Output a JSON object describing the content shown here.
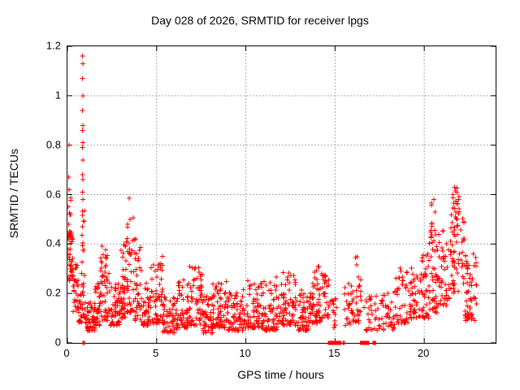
{
  "chart_data": {
    "type": "scatter",
    "title": "Day 028 of 2026, SRMTID for receiver lpgs",
    "xlabel": "GPS time / hours",
    "ylabel": "SRMTID / TECUs",
    "xlim": [
      0,
      24
    ],
    "ylim": [
      0,
      1.2
    ],
    "xticks": [
      0,
      5,
      10,
      15,
      20
    ],
    "xtick_labels": [
      "0",
      "5",
      "10",
      "15",
      "20"
    ],
    "yticks": [
      0,
      0.2,
      0.4,
      0.6,
      0.8,
      1,
      1.2
    ],
    "ytick_labels": [
      "0",
      "0.2",
      "0.4",
      "0.6",
      "0.8",
      "1",
      "1.2"
    ],
    "grid": true,
    "legend": "none",
    "marker": {
      "shape": "plus",
      "color": "#ff0000",
      "size": 6
    },
    "grid_color": "#a8a8a8",
    "axis_color": "#000000",
    "notable_points": [
      [
        0.85,
        1.16
      ],
      [
        0.86,
        1.13
      ],
      [
        0.85,
        1.07
      ],
      [
        0.86,
        1.0
      ],
      [
        0.85,
        0.94
      ],
      [
        0.87,
        0.88
      ],
      [
        0.85,
        0.86
      ],
      [
        0.86,
        0.81
      ],
      [
        0.85,
        0.79
      ],
      [
        0.87,
        0.74
      ],
      [
        0.85,
        0.68
      ],
      [
        0.86,
        0.66
      ],
      [
        0.85,
        0.61
      ],
      [
        0.87,
        0.58
      ],
      [
        0.1,
        0.8
      ],
      [
        0.06,
        0.67
      ],
      [
        0.1,
        0.62
      ],
      [
        0.05,
        0.55
      ],
      [
        0.13,
        0.52
      ],
      [
        3.45,
        0.585
      ],
      [
        3.5,
        0.5
      ],
      [
        3.38,
        0.48
      ],
      [
        21.7,
        0.63
      ],
      [
        21.75,
        0.615
      ],
      [
        21.6,
        0.6
      ],
      [
        20.4,
        0.565
      ]
    ],
    "clusters": [
      [
        0.02,
        0.32,
        0.25,
        0.46,
        40,
        1.0
      ],
      [
        0.04,
        0.2,
        0.44,
        0.6,
        8,
        1.3
      ],
      [
        0.3,
        0.62,
        0.12,
        0.32,
        26,
        1.5
      ],
      [
        0.6,
        0.82,
        0.08,
        0.2,
        20,
        1.5
      ],
      [
        0.8,
        0.96,
        0.1,
        0.55,
        26,
        1.2
      ],
      [
        0.96,
        1.55,
        0.05,
        0.17,
        55,
        1.5
      ],
      [
        1.55,
        1.85,
        0.07,
        0.24,
        30,
        1.6
      ],
      [
        1.85,
        2.35,
        0.09,
        0.4,
        48,
        1.8
      ],
      [
        2.35,
        2.95,
        0.07,
        0.26,
        52,
        1.8
      ],
      [
        2.95,
        3.3,
        0.1,
        0.4,
        40,
        1.5
      ],
      [
        3.3,
        3.75,
        0.12,
        0.52,
        42,
        1.4
      ],
      [
        3.75,
        4.15,
        0.09,
        0.43,
        36,
        1.7
      ],
      [
        4.15,
        4.65,
        0.07,
        0.26,
        42,
        1.8
      ],
      [
        4.65,
        5.35,
        0.08,
        0.36,
        58,
        2.0
      ],
      [
        5.35,
        6.15,
        0.04,
        0.19,
        62,
        1.6
      ],
      [
        6.15,
        6.75,
        0.06,
        0.26,
        52,
        1.8
      ],
      [
        6.75,
        7.55,
        0.07,
        0.31,
        62,
        2.0
      ],
      [
        7.55,
        8.15,
        0.04,
        0.19,
        52,
        1.6
      ],
      [
        8.15,
        8.95,
        0.06,
        0.25,
        62,
        1.9
      ],
      [
        8.95,
        9.85,
        0.05,
        0.21,
        68,
        1.8
      ],
      [
        9.85,
        10.95,
        0.06,
        0.26,
        80,
        2.0
      ],
      [
        10.95,
        11.85,
        0.05,
        0.27,
        68,
        2.0
      ],
      [
        11.85,
        12.85,
        0.07,
        0.29,
        72,
        1.9
      ],
      [
        12.85,
        13.65,
        0.05,
        0.23,
        62,
        1.8
      ],
      [
        13.65,
        14.35,
        0.08,
        0.31,
        56,
        1.8
      ],
      [
        14.35,
        14.75,
        0.1,
        0.28,
        26,
        1.4
      ],
      [
        14.75,
        15.1,
        0.06,
        0.19,
        14,
        1.5
      ],
      [
        15.5,
        15.95,
        0.07,
        0.25,
        22,
        1.5
      ],
      [
        15.95,
        16.5,
        0.08,
        0.35,
        34,
        1.6
      ],
      [
        16.6,
        17.2,
        0.05,
        0.19,
        20,
        1.5
      ],
      [
        17.2,
        18.35,
        0.05,
        0.21,
        52,
        1.7
      ],
      [
        18.35,
        19.35,
        0.08,
        0.31,
        62,
        1.8
      ],
      [
        19.35,
        20.25,
        0.1,
        0.37,
        62,
        1.7
      ],
      [
        20.25,
        20.75,
        0.12,
        0.46,
        42,
        1.5
      ],
      [
        20.32,
        20.62,
        0.4,
        0.58,
        10,
        1.0
      ],
      [
        20.75,
        21.45,
        0.15,
        0.46,
        46,
        1.5
      ],
      [
        21.45,
        22.25,
        0.2,
        0.56,
        60,
        1.2
      ],
      [
        21.55,
        21.95,
        0.5,
        0.63,
        15,
        1.0
      ],
      [
        22.25,
        22.95,
        0.09,
        0.36,
        56,
        1.4
      ]
    ],
    "zero_line_segments": [
      [
        0.84,
        0.98
      ],
      [
        14.6,
        15.35
      ],
      [
        15.42,
        15.55
      ],
      [
        16.4,
        16.92
      ],
      [
        17.1,
        17.3
      ]
    ],
    "data_gaps": [
      [
        15.1,
        15.5
      ]
    ]
  }
}
